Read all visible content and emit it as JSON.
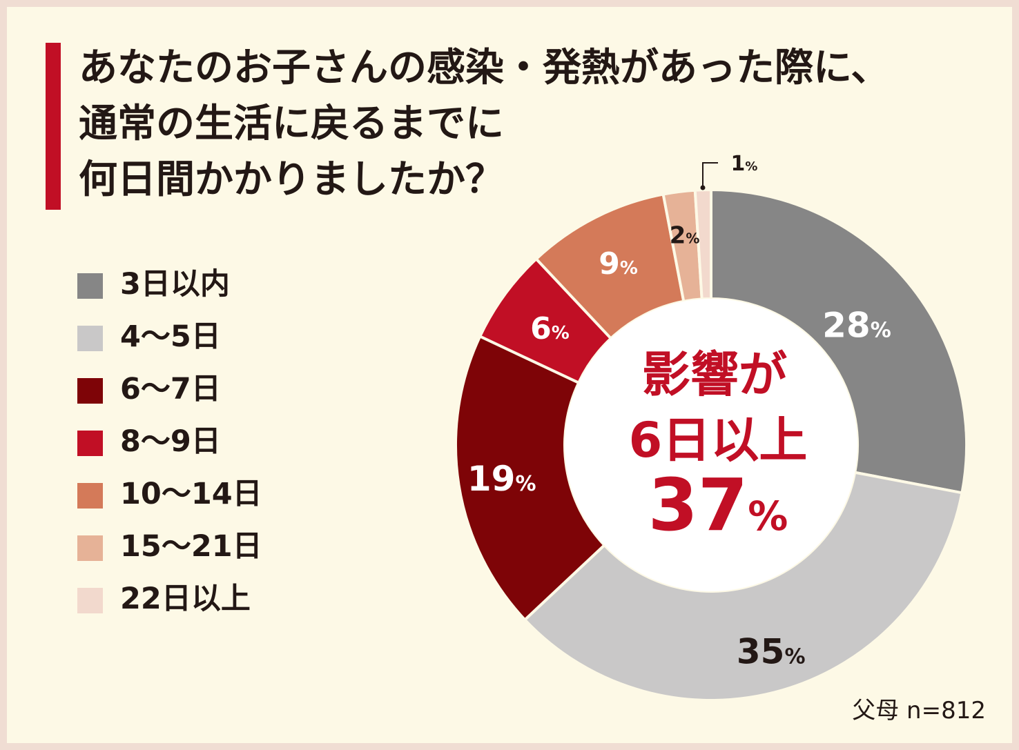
{
  "title": {
    "lines": [
      "あなたのお子さんの感染・発熱があった際に、",
      "通常の生活に戻るまでに",
      "何日間かかりましたか？"
    ]
  },
  "colors": {
    "accent": "#c10f25",
    "background": "#fdf9e6",
    "border": "#f0ddd3"
  },
  "chart_data": {
    "type": "donut",
    "categories": [
      "3日以内",
      "4～5日",
      "6～7日",
      "8～9日",
      "10～14日",
      "15～21日",
      "22日以上"
    ],
    "values": [
      28,
      35,
      19,
      6,
      9,
      2,
      1
    ],
    "value_labels": [
      "28",
      "35",
      "19",
      "6",
      "9",
      "2",
      "1"
    ],
    "unit": "%",
    "colors": [
      "#868686",
      "#c9c8c8",
      "#7e0407",
      "#c10f25",
      "#d47a59",
      "#e6b297",
      "#f2d9cd"
    ],
    "label_colors": [
      "#ffffff",
      "#231815",
      "#ffffff",
      "#ffffff",
      "#ffffff",
      "#231815",
      "#231815"
    ],
    "legend_placement": "left",
    "center_text": [
      "影響が",
      "6日以上"
    ],
    "center_value": "37",
    "center_unit": "%",
    "note": "父母 n=812"
  }
}
